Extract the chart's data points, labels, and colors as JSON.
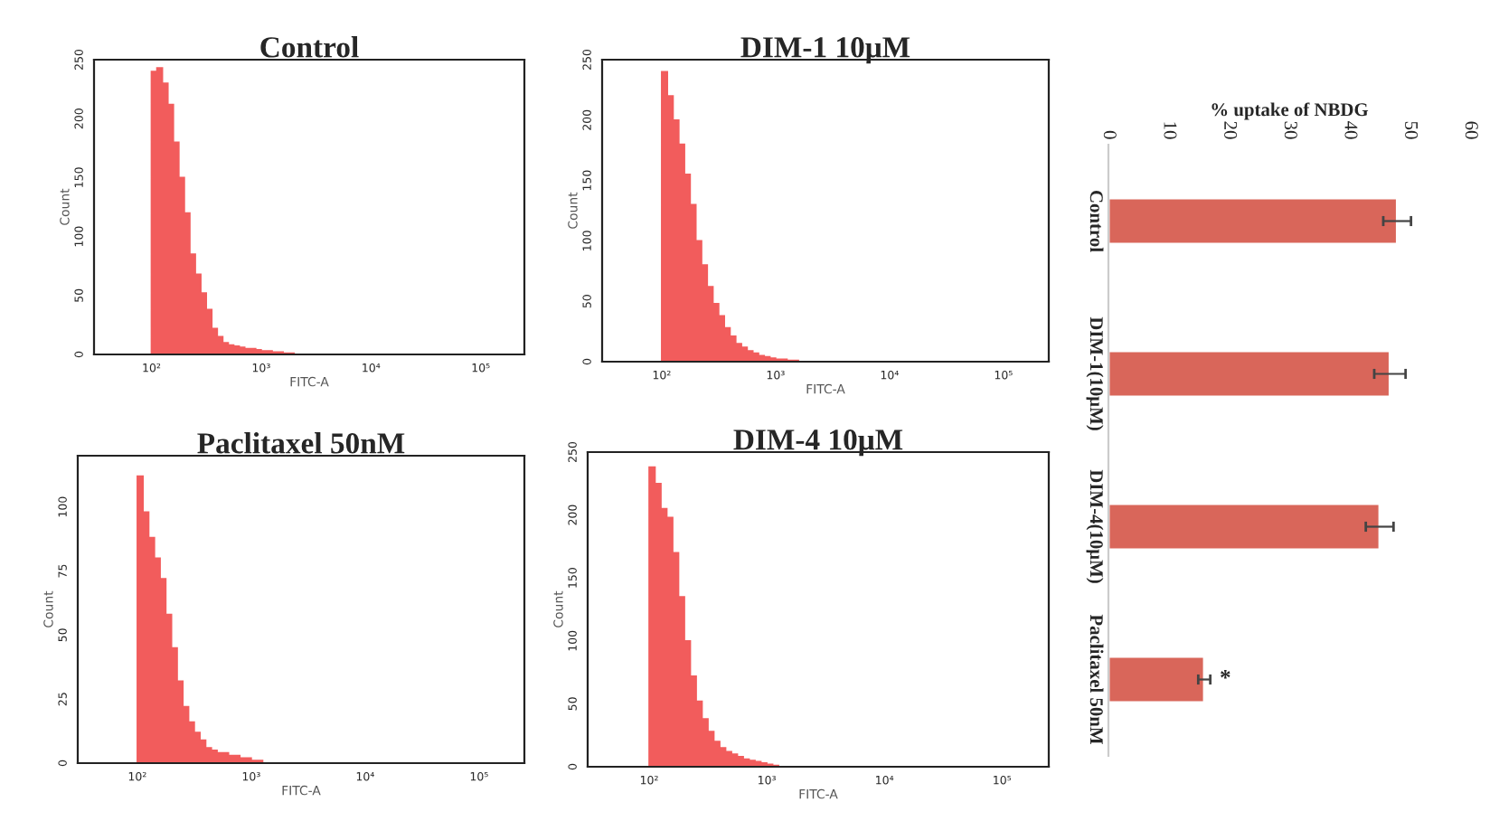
{
  "chart_data": [
    {
      "type": "histogram",
      "title": "Control",
      "xlabel": "FITC-A",
      "ylabel": "Count",
      "log": "x",
      "color": "#f25c5c",
      "bins": [
        100,
        112.2,
        125.9,
        141.3,
        158.5,
        177.8,
        199.5,
        223.9,
        251.2,
        281.8,
        316.2,
        354.8,
        398.1,
        446.7,
        501.2,
        562.3,
        631,
        707.9,
        794.3,
        891.3,
        1000,
        1122,
        1259,
        1413,
        1585,
        1778,
        1995
      ],
      "values": [
        240,
        243,
        230,
        212,
        180,
        150,
        120,
        85,
        68,
        52,
        38,
        22,
        15,
        10,
        8,
        7,
        6,
        5,
        5,
        4,
        3,
        3,
        2,
        2,
        1,
        1
      ],
      "xlim": [
        30,
        250000
      ],
      "xticks": [
        {
          "value": 100,
          "label": "10²"
        },
        {
          "value": 1000,
          "label": "10³"
        },
        {
          "value": 10000,
          "label": "10⁴"
        },
        {
          "value": 100000,
          "label": "10⁵"
        }
      ],
      "ylim": [
        0,
        250
      ],
      "yticks": [
        0,
        50,
        100,
        150,
        200,
        250
      ]
    },
    {
      "type": "histogram",
      "title": "DIM-1 10μM",
      "xlabel": "FITC-A",
      "ylabel": "Count",
      "log": "x",
      "color": "#f25c5c",
      "bins": [
        100,
        112.2,
        125.9,
        141.3,
        158.5,
        177.8,
        199.5,
        223.9,
        251.2,
        281.8,
        316.2,
        354.8,
        398.1,
        446.7,
        501.2,
        562.3,
        631,
        707.9,
        794.3,
        891.3,
        1000,
        1122,
        1259,
        1413,
        1585,
        1778,
        1995
      ],
      "values": [
        240,
        220,
        200,
        180,
        155,
        130,
        100,
        80,
        62,
        48,
        38,
        28,
        21,
        15,
        12,
        9,
        7,
        5,
        4,
        3,
        2,
        2,
        1,
        1,
        0,
        0
      ],
      "xlim": [
        30,
        250000
      ],
      "xticks": [
        {
          "value": 100,
          "label": "10²"
        },
        {
          "value": 1000,
          "label": "10³"
        },
        {
          "value": 10000,
          "label": "10⁴"
        },
        {
          "value": 100000,
          "label": "10⁵"
        }
      ],
      "ylim": [
        0,
        250
      ],
      "yticks": [
        0,
        50,
        100,
        150,
        200,
        250
      ]
    },
    {
      "type": "histogram",
      "title": "Paclitaxel 50nM",
      "xlabel": "FITC-A",
      "ylabel": "Count",
      "log": "x",
      "color": "#f25c5c",
      "bins": [
        100,
        112.2,
        125.9,
        141.3,
        158.5,
        177.8,
        199.5,
        223.9,
        251.2,
        281.8,
        316.2,
        354.8,
        398.1,
        446.7,
        501.2,
        562.3,
        631,
        707.9,
        794.3,
        891.3,
        1000,
        1122,
        1259,
        1413,
        1585,
        1778,
        1995
      ],
      "values": [
        112,
        98,
        88,
        80,
        72,
        58,
        45,
        32,
        22,
        16,
        12,
        9,
        6,
        5,
        4,
        4,
        3,
        3,
        2,
        2,
        1,
        1,
        0,
        0,
        0,
        0
      ],
      "xlim": [
        30,
        250000
      ],
      "xticks": [
        {
          "value": 100,
          "label": "10²"
        },
        {
          "value": 1000,
          "label": "10³"
        },
        {
          "value": 10000,
          "label": "10⁴"
        },
        {
          "value": 100000,
          "label": "10⁵"
        }
      ],
      "ylim": [
        0,
        120
      ],
      "yticks": [
        0,
        25,
        50,
        75,
        100
      ]
    },
    {
      "type": "histogram",
      "title": "DIM-4 10μM",
      "xlabel": "FITC-A",
      "ylabel": "Count",
      "log": "x",
      "color": "#f25c5c",
      "bins": [
        100,
        112.2,
        125.9,
        141.3,
        158.5,
        177.8,
        199.5,
        223.9,
        251.2,
        281.8,
        316.2,
        354.8,
        398.1,
        446.7,
        501.2,
        562.3,
        631,
        707.9,
        794.3,
        891.3,
        1000,
        1122,
        1259,
        1413,
        1585,
        1778,
        1995
      ],
      "values": [
        238,
        225,
        205,
        198,
        170,
        135,
        100,
        72,
        52,
        38,
        28,
        20,
        15,
        12,
        10,
        8,
        6,
        5,
        4,
        3,
        2,
        1,
        0,
        0,
        0,
        0
      ],
      "xlim": [
        30,
        250000
      ],
      "xticks": [
        {
          "value": 100,
          "label": "10²"
        },
        {
          "value": 1000,
          "label": "10³"
        },
        {
          "value": 10000,
          "label": "10⁴"
        },
        {
          "value": 100000,
          "label": "10⁵"
        }
      ],
      "ylim": [
        0,
        250
      ],
      "yticks": [
        0,
        50,
        100,
        150,
        200,
        250
      ]
    },
    {
      "type": "bar",
      "orientation": "horizontal",
      "xlabel": "% uptake of NBDG",
      "color": "#d9665a",
      "categories": [
        "Control",
        "DIM-1(10μM)",
        "DIM-4(10μM)",
        "Paclitaxel 50nM"
      ],
      "values": [
        47.9,
        46.7,
        45.0,
        15.9
      ],
      "errors": [
        2.3,
        2.6,
        2.3,
        1.0
      ],
      "xlim": [
        0,
        60
      ],
      "xticks": [
        0,
        10,
        20,
        30,
        40,
        50,
        60
      ],
      "annotations": [
        "*"
      ]
    }
  ]
}
